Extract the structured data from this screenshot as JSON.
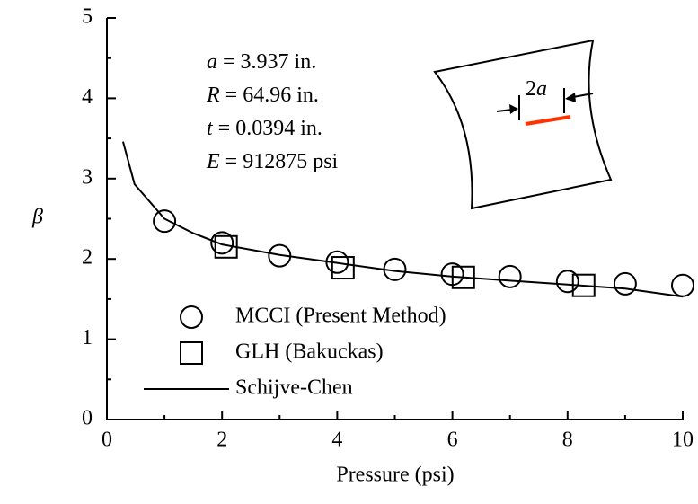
{
  "chart_data": {
    "type": "line",
    "xlabel": "Pressure (psi)",
    "ylabel": "β",
    "xlim": [
      0,
      10
    ],
    "xticks": [
      0,
      2,
      4,
      6,
      8,
      10
    ],
    "ylim": [
      0,
      5
    ],
    "yticks": [
      0,
      1,
      2,
      3,
      4,
      5
    ],
    "series": [
      {
        "name": "MCCI (Present Method)",
        "marker": "circle",
        "color": "#000000",
        "x": [
          1,
          2,
          3,
          4,
          5,
          6,
          7,
          8,
          9,
          10
        ],
        "values": [
          2.47,
          2.2,
          2.04,
          1.96,
          1.87,
          1.81,
          1.78,
          1.72,
          1.69,
          1.67
        ]
      },
      {
        "name": "GLH (Bakuckas)",
        "marker": "square",
        "color": "#000000",
        "x": [
          2.07,
          4.1,
          6.19,
          8.28
        ],
        "values": [
          2.15,
          1.89,
          1.77,
          1.67
        ]
      },
      {
        "name": "Schijve-Chen",
        "marker": "line",
        "color": "#000000",
        "x": [
          0.28,
          0.48,
          1,
          1.5,
          2,
          3,
          4,
          5,
          6,
          7,
          8,
          9,
          10
        ],
        "values": [
          3.46,
          2.93,
          2.5,
          2.32,
          2.18,
          2.05,
          1.95,
          1.85,
          1.78,
          1.73,
          1.68,
          1.63,
          1.53
        ]
      }
    ],
    "parameters": [
      {
        "symbol": "a",
        "text": " = 3.937 in."
      },
      {
        "symbol": "R",
        "text": " = 64.96 in."
      },
      {
        "symbol": "t",
        "text": " = 0.0394 in."
      },
      {
        "symbol": "E",
        "text": " = 912875 psi"
      }
    ],
    "inset_label": {
      "factor": "2",
      "symbol": "a"
    }
  }
}
